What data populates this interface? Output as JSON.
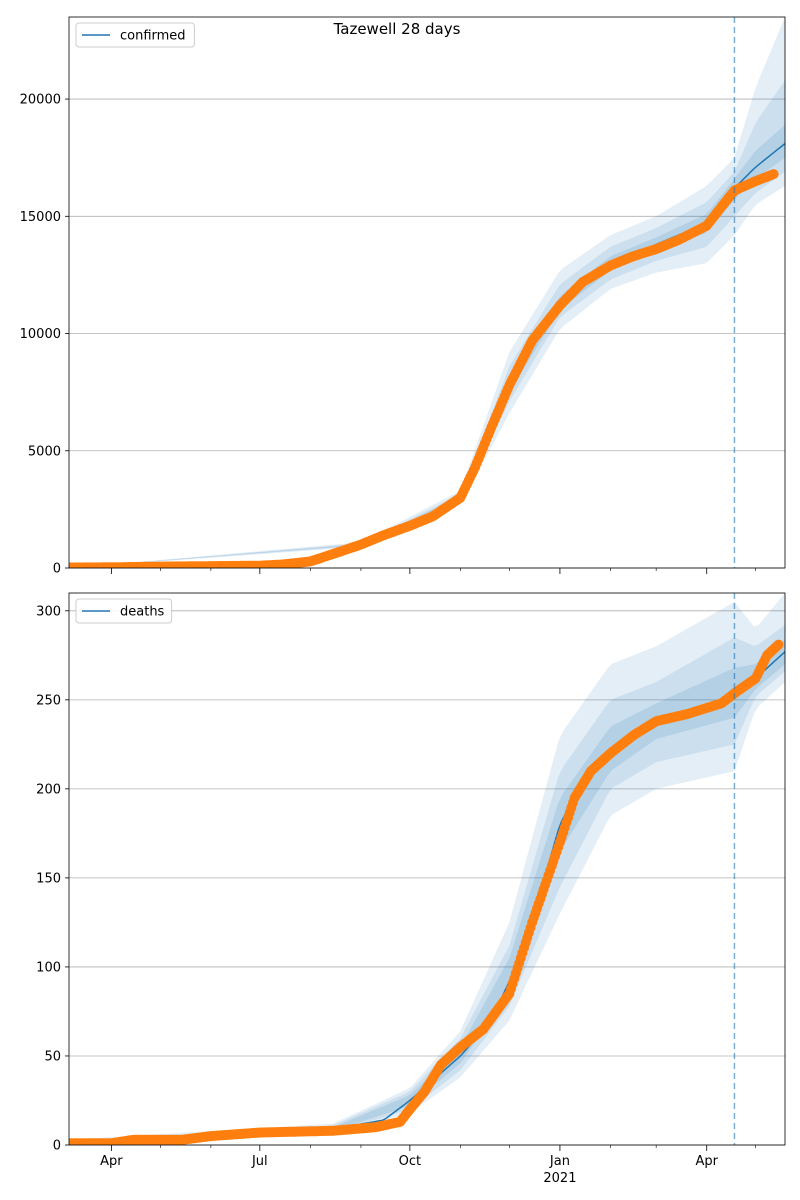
{
  "title": "Tazewell 28 days",
  "colors": {
    "model_line": "#1f77b4",
    "observed_points": "#ff7f0e",
    "band": "#1f77b4",
    "vline": "#1f77b4",
    "grid": "#b0b0b0"
  },
  "x_axis": {
    "date_range": [
      "2020-03-06",
      "2021-05-19"
    ],
    "ticks": [
      {
        "date": "2020-04-01",
        "label": "Apr"
      },
      {
        "date": "2020-07-01",
        "label": "Jul"
      },
      {
        "date": "2020-10-01",
        "label": "Oct"
      },
      {
        "date": "2021-01-01",
        "label": "Jan",
        "sublabel": "2021"
      },
      {
        "date": "2021-04-01",
        "label": "Apr"
      }
    ],
    "minor_tick_dates": [
      "2020-05-01",
      "2020-06-01",
      "2020-08-01",
      "2020-09-01",
      "2020-11-01",
      "2020-12-01",
      "2021-02-01",
      "2021-03-01",
      "2021-05-01"
    ]
  },
  "forecast_start": "2021-04-18",
  "chart_data": [
    {
      "type": "line",
      "legend_label": "confirmed",
      "legend_position": "upper-left",
      "ylim": [
        0,
        23500
      ],
      "yticks": [
        0,
        5000,
        10000,
        15000,
        20000
      ],
      "grid": "horizontal",
      "observed": [
        [
          "2020-03-06",
          20
        ],
        [
          "2020-04-01",
          30
        ],
        [
          "2020-05-01",
          60
        ],
        [
          "2020-06-01",
          80
        ],
        [
          "2020-07-01",
          100
        ],
        [
          "2020-07-15",
          150
        ],
        [
          "2020-08-01",
          280
        ],
        [
          "2020-08-15",
          600
        ],
        [
          "2020-09-01",
          1000
        ],
        [
          "2020-09-15",
          1400
        ],
        [
          "2020-10-01",
          1800
        ],
        [
          "2020-10-15",
          2200
        ],
        [
          "2020-11-01",
          3000
        ],
        [
          "2020-11-10",
          4300
        ],
        [
          "2020-11-20",
          6000
        ],
        [
          "2020-12-01",
          7800
        ],
        [
          "2020-12-15",
          9700
        ],
        [
          "2021-01-01",
          11200
        ],
        [
          "2021-01-15",
          12200
        ],
        [
          "2021-02-01",
          12900
        ],
        [
          "2021-02-15",
          13300
        ],
        [
          "2021-03-01",
          13600
        ],
        [
          "2021-03-15",
          14000
        ],
        [
          "2021-04-01",
          14600
        ],
        [
          "2021-04-10",
          15400
        ],
        [
          "2021-04-18",
          16100
        ],
        [
          "2021-05-01",
          16500
        ],
        [
          "2021-05-12",
          16800
        ]
      ],
      "model": [
        [
          "2020-03-06",
          0
        ],
        [
          "2020-06-01",
          60
        ],
        [
          "2020-07-01",
          110
        ],
        [
          "2020-08-01",
          300
        ],
        [
          "2020-09-01",
          1000
        ],
        [
          "2020-10-01",
          1800
        ],
        [
          "2020-11-01",
          3000
        ],
        [
          "2020-11-20",
          6000
        ],
        [
          "2020-12-15",
          9700
        ],
        [
          "2021-01-01",
          11300
        ],
        [
          "2021-01-15",
          12400
        ],
        [
          "2021-02-01",
          13000
        ],
        [
          "2021-03-01",
          13800
        ],
        [
          "2021-04-01",
          14700
        ],
        [
          "2021-04-18",
          16200
        ],
        [
          "2021-05-01",
          17100
        ],
        [
          "2021-05-19",
          18100
        ]
      ],
      "bands": [
        {
          "opacity": 0.12,
          "points": [
            [
              "2020-03-06",
              0,
              0
            ],
            [
              "2020-09-01",
              900,
              1100
            ],
            [
              "2020-11-01",
              2700,
              3300
            ],
            [
              "2020-12-01",
              6600,
              9200
            ],
            [
              "2021-01-01",
              10200,
              12700
            ],
            [
              "2021-02-01",
              11900,
              14200
            ],
            [
              "2021-03-01",
              12600,
              15000
            ],
            [
              "2021-04-01",
              13000,
              16300
            ],
            [
              "2021-04-18",
              14200,
              17500
            ],
            [
              "2021-05-01",
              15500,
              20500
            ],
            [
              "2021-05-19",
              16300,
              23500
            ]
          ]
        },
        {
          "opacity": 0.12,
          "points": [
            [
              "2020-03-06",
              0,
              0
            ],
            [
              "2020-09-01",
              950,
              1050
            ],
            [
              "2020-11-01",
              2850,
              3150
            ],
            [
              "2020-12-01",
              7100,
              8600
            ],
            [
              "2021-01-01",
              10700,
              12100
            ],
            [
              "2021-02-01",
              12300,
              13700
            ],
            [
              "2021-03-01",
              13100,
              14500
            ],
            [
              "2021-04-01",
              13700,
              15600
            ],
            [
              "2021-04-18",
              15000,
              16900
            ],
            [
              "2021-05-01",
              16000,
              19000
            ],
            [
              "2021-05-19",
              16900,
              20800
            ]
          ]
        },
        {
          "opacity": 0.14,
          "points": [
            [
              "2020-03-06",
              0,
              0
            ],
            [
              "2020-09-01",
              980,
              1020
            ],
            [
              "2020-11-01",
              2950,
              3050
            ],
            [
              "2020-12-01",
              7500,
              8200
            ],
            [
              "2021-01-01",
              11000,
              11600
            ],
            [
              "2021-02-01",
              12700,
              13300
            ],
            [
              "2021-03-01",
              13500,
              14100
            ],
            [
              "2021-04-01",
              14300,
              15100
            ],
            [
              "2021-04-18",
              15700,
              16600
            ],
            [
              "2021-05-01",
              16600,
              17800
            ],
            [
              "2021-05-19",
              17500,
              18900
            ]
          ]
        }
      ]
    },
    {
      "type": "line",
      "legend_label": "deaths",
      "legend_position": "upper-left",
      "ylim": [
        0,
        310
      ],
      "yticks": [
        0,
        50,
        100,
        150,
        200,
        250,
        300
      ],
      "grid": "horizontal",
      "observed": [
        [
          "2020-03-06",
          1
        ],
        [
          "2020-04-01",
          1
        ],
        [
          "2020-04-15",
          3
        ],
        [
          "2020-05-15",
          3
        ],
        [
          "2020-06-01",
          5
        ],
        [
          "2020-07-01",
          7
        ],
        [
          "2020-08-15",
          8
        ],
        [
          "2020-09-10",
          10
        ],
        [
          "2020-09-25",
          13
        ],
        [
          "2020-10-01",
          20
        ],
        [
          "2020-10-10",
          30
        ],
        [
          "2020-10-20",
          45
        ],
        [
          "2020-11-01",
          55
        ],
        [
          "2020-11-15",
          65
        ],
        [
          "2020-12-01",
          85
        ],
        [
          "2020-12-15",
          125
        ],
        [
          "2021-01-01",
          170
        ],
        [
          "2021-01-10",
          195
        ],
        [
          "2021-01-20",
          210
        ],
        [
          "2021-02-01",
          220
        ],
        [
          "2021-02-15",
          230
        ],
        [
          "2021-03-01",
          238
        ],
        [
          "2021-03-20",
          242
        ],
        [
          "2021-04-10",
          248
        ],
        [
          "2021-04-20",
          255
        ],
        [
          "2021-05-01",
          262
        ],
        [
          "2021-05-08",
          275
        ],
        [
          "2021-05-15",
          281
        ]
      ],
      "model": [
        [
          "2020-03-06",
          0
        ],
        [
          "2020-07-01",
          6
        ],
        [
          "2020-08-15",
          9
        ],
        [
          "2020-09-15",
          14
        ],
        [
          "2020-10-01",
          25
        ],
        [
          "2020-11-01",
          50
        ],
        [
          "2020-11-20",
          70
        ],
        [
          "2020-12-10",
          110
        ],
        [
          "2021-01-01",
          180
        ],
        [
          "2021-01-15",
          205
        ],
        [
          "2021-02-01",
          220
        ],
        [
          "2021-02-15",
          230
        ],
        [
          "2021-03-01",
          237
        ],
        [
          "2021-04-01",
          245
        ],
        [
          "2021-04-18",
          255
        ],
        [
          "2021-05-01",
          262
        ],
        [
          "2021-05-19",
          277
        ]
      ],
      "bands": [
        {
          "opacity": 0.12,
          "points": [
            [
              "2020-03-06",
              0,
              3
            ],
            [
              "2020-08-15",
              6,
              12
            ],
            [
              "2020-10-01",
              18,
              32
            ],
            [
              "2020-11-01",
              38,
              64
            ],
            [
              "2020-12-01",
              70,
              125
            ],
            [
              "2021-01-01",
              130,
              230
            ],
            [
              "2021-02-01",
              185,
              270
            ],
            [
              "2021-03-01",
              200,
              280
            ],
            [
              "2021-04-18",
              210,
              305
            ],
            [
              "2021-05-01",
              245,
              290
            ],
            [
              "2021-05-19",
              260,
              310
            ]
          ]
        },
        {
          "opacity": 0.12,
          "points": [
            [
              "2020-03-06",
              0,
              2
            ],
            [
              "2020-08-15",
              7,
              11
            ],
            [
              "2020-10-01",
              20,
              30
            ],
            [
              "2020-11-01",
              42,
              60
            ],
            [
              "2020-12-01",
              78,
              112
            ],
            [
              "2021-01-01",
              145,
              210
            ],
            [
              "2021-02-01",
              200,
              250
            ],
            [
              "2021-03-01",
              215,
              260
            ],
            [
              "2021-04-18",
              225,
              285
            ],
            [
              "2021-05-01",
              252,
              280
            ],
            [
              "2021-05-19",
              266,
              292
            ]
          ]
        },
        {
          "opacity": 0.14,
          "points": [
            [
              "2020-03-06",
              0,
              1
            ],
            [
              "2020-08-15",
              8,
              10
            ],
            [
              "2020-10-01",
              22,
              28
            ],
            [
              "2020-11-01",
              46,
              55
            ],
            [
              "2020-12-01",
              85,
              105
            ],
            [
              "2021-01-01",
              165,
              195
            ],
            [
              "2021-02-01",
              210,
              235
            ],
            [
              "2021-03-01",
              228,
              248
            ],
            [
              "2021-04-18",
              240,
              268
            ],
            [
              "2021-05-01",
              256,
              270
            ],
            [
              "2021-05-19",
              270,
              284
            ]
          ]
        }
      ]
    }
  ]
}
